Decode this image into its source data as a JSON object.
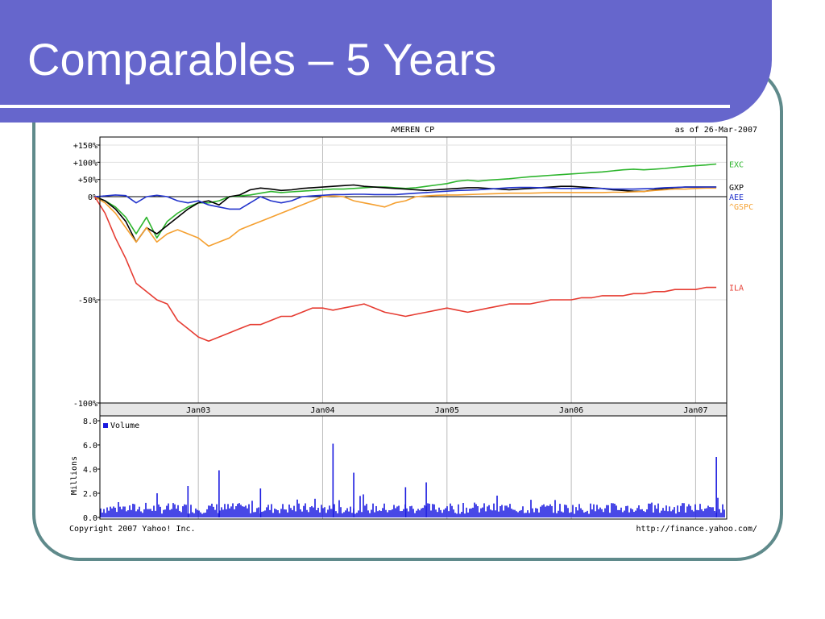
{
  "slide": {
    "title": "Comparables – 5 Years"
  },
  "colors": {
    "banner": "#6666cc",
    "frame": "#5f8a8b",
    "EXC": "#2db52d",
    "GXP": "#000000",
    "GSPC": "#f5a030",
    "AEE": "#2233cc",
    "ILA": "#e63c32",
    "volume": "#1a1adf"
  },
  "chart_data": [
    {
      "type": "line",
      "title": "AMEREN CP",
      "as_of": "as of 26-Mar-2007",
      "x_tick_labels": [
        "Jan03",
        "Jan04",
        "Jan05",
        "Jan06",
        "Jan07"
      ],
      "y_tick_labels": [
        "+150%",
        "+100%",
        "+50%",
        "0%",
        "-50%",
        "-100%"
      ],
      "y_unit": "percent change",
      "ylim": [
        -100,
        150
      ],
      "grid": true,
      "legend_position": "right",
      "x": [
        "2002-03",
        "2002-04",
        "2002-05",
        "2002-06",
        "2002-07",
        "2002-08",
        "2002-09",
        "2002-10",
        "2002-11",
        "2002-12",
        "2003-01",
        "2003-02",
        "2003-03",
        "2003-04",
        "2003-05",
        "2003-06",
        "2003-07",
        "2003-08",
        "2003-09",
        "2003-10",
        "2003-11",
        "2003-12",
        "2004-01",
        "2004-02",
        "2004-03",
        "2004-04",
        "2004-05",
        "2004-06",
        "2004-07",
        "2004-08",
        "2004-09",
        "2004-10",
        "2004-11",
        "2004-12",
        "2005-01",
        "2005-02",
        "2005-03",
        "2005-04",
        "2005-05",
        "2005-06",
        "2005-07",
        "2005-08",
        "2005-09",
        "2005-10",
        "2005-11",
        "2005-12",
        "2006-01",
        "2006-02",
        "2006-03",
        "2006-04",
        "2006-05",
        "2006-06",
        "2006-07",
        "2006-08",
        "2006-09",
        "2006-10",
        "2006-11",
        "2006-12",
        "2007-01",
        "2007-02",
        "2007-03"
      ],
      "series": [
        {
          "name": "EXC",
          "values": [
            0,
            -2,
            -5,
            -10,
            -18,
            -10,
            -20,
            -12,
            -8,
            -5,
            -3,
            -3,
            -2,
            0,
            2,
            5,
            10,
            15,
            12,
            14,
            16,
            18,
            20,
            22,
            22,
            24,
            26,
            28,
            28,
            26,
            24,
            26,
            30,
            34,
            38,
            45,
            48,
            45,
            48,
            50,
            52,
            55,
            58,
            60,
            62,
            64,
            66,
            68,
            70,
            72,
            75,
            78,
            80,
            78,
            80,
            82,
            85,
            88,
            90,
            92,
            95
          ]
        },
        {
          "name": "GXP",
          "values": [
            0,
            -2,
            -6,
            -12,
            -22,
            -15,
            -18,
            -14,
            -10,
            -6,
            -3,
            -2,
            -4,
            0,
            5,
            20,
            25,
            22,
            18,
            20,
            24,
            26,
            28,
            30,
            32,
            34,
            30,
            28,
            26,
            24,
            22,
            20,
            18,
            20,
            22,
            24,
            26,
            26,
            24,
            22,
            20,
            22,
            24,
            26,
            28,
            30,
            30,
            28,
            26,
            24,
            20,
            18,
            16,
            15,
            20,
            24,
            26,
            28,
            28,
            28,
            28
          ]
        },
        {
          "name": "^GSPC",
          "values": [
            0,
            -3,
            -8,
            -15,
            -22,
            -15,
            -22,
            -18,
            -16,
            -18,
            -20,
            -24,
            -22,
            -20,
            -16,
            -14,
            -12,
            -10,
            -8,
            -6,
            -4,
            -2,
            0,
            2,
            0,
            -2,
            -3,
            -4,
            -5,
            -3,
            -2,
            0,
            2,
            4,
            5,
            5,
            6,
            7,
            8,
            9,
            10,
            10,
            10,
            11,
            12,
            12,
            12,
            12,
            12,
            12,
            13,
            13,
            14,
            15,
            18,
            20,
            22,
            22,
            24,
            25,
            25
          ]
        },
        {
          "name": "AEE",
          "values": [
            0,
            2,
            5,
            3,
            -3,
            0,
            4,
            0,
            -2,
            -3,
            -2,
            -4,
            -5,
            -6,
            -6,
            -3,
            0,
            -2,
            -3,
            -2,
            0,
            2,
            4,
            6,
            6,
            7,
            7,
            6,
            6,
            6,
            8,
            10,
            12,
            14,
            16,
            18,
            19,
            20,
            22,
            24,
            26,
            27,
            27,
            26,
            25,
            24,
            24,
            24,
            24,
            24,
            22,
            22,
            22,
            23,
            24,
            26,
            27,
            28,
            28,
            28,
            28
          ]
        },
        {
          "name": "ILA",
          "values": [
            0,
            -8,
            -20,
            -30,
            -42,
            -46,
            -50,
            -52,
            -60,
            -64,
            -68,
            -70,
            -68,
            -66,
            -64,
            -62,
            -62,
            -60,
            -58,
            -58,
            -56,
            -54,
            -54,
            -55,
            -54,
            -53,
            -52,
            -54,
            -56,
            -57,
            -58,
            -57,
            -56,
            -55,
            -54,
            -55,
            -56,
            -55,
            -54,
            -53,
            -52,
            -52,
            -52,
            -51,
            -50,
            -50,
            -50,
            -49,
            -49,
            -48,
            -48,
            -48,
            -47,
            -47,
            -46,
            -46,
            -45,
            -45,
            -45,
            -44,
            -44
          ]
        }
      ]
    },
    {
      "type": "bar",
      "title": "Volume",
      "ylabel": "Millions",
      "ylim": [
        0,
        8
      ],
      "y_tick_labels": [
        "0.0",
        "2.0",
        "4.0",
        "6.0",
        "8.0"
      ],
      "spikes": [
        {
          "x": "2002-12",
          "value": 2.6
        },
        {
          "x": "2003-03",
          "value": 3.9
        },
        {
          "x": "2003-07",
          "value": 2.4
        },
        {
          "x": "2004-02",
          "value": 6.1
        },
        {
          "x": "2004-04",
          "value": 3.7
        },
        {
          "x": "2004-09",
          "value": 2.5
        },
        {
          "x": "2004-11",
          "value": 2.9
        },
        {
          "x": "2007-03",
          "value": 5.0
        }
      ],
      "baseline_range": [
        0.3,
        1.2
      ]
    }
  ],
  "footer": {
    "copyright": "Copyright 2007 Yahoo! Inc.",
    "url": "http://finance.yahoo.com/"
  }
}
